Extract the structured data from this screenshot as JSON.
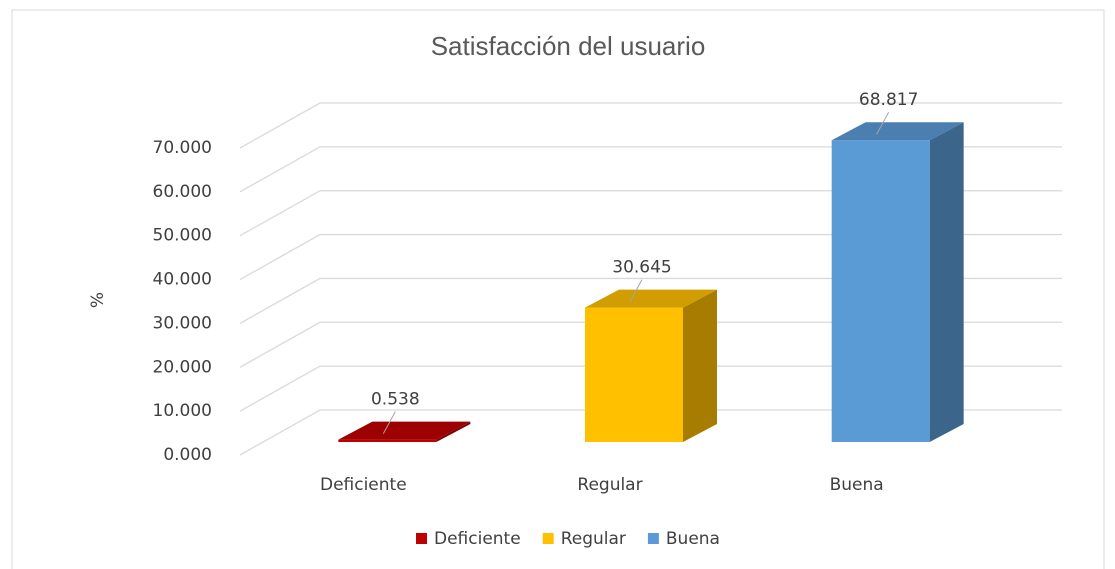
{
  "chart_data": {
    "type": "bar3d",
    "title": "Satisfacción del usuario",
    "y_label": "%",
    "categories": [
      "Deficiente",
      "Regular",
      "Buena"
    ],
    "values": [
      0.538,
      30.645,
      68.817
    ],
    "colors": [
      "#c00000",
      "#ffc000",
      "#5b9bd5"
    ],
    "ylim": [
      0,
      70
    ],
    "yticks": [
      {
        "value": 0,
        "label": "0.000"
      },
      {
        "value": 10,
        "label": "10.000"
      },
      {
        "value": 20,
        "label": "20.000"
      },
      {
        "value": 30,
        "label": "30.000"
      },
      {
        "value": 40,
        "label": "40.000"
      },
      {
        "value": 50,
        "label": "50.000"
      },
      {
        "value": 60,
        "label": "60.000"
      },
      {
        "value": 70,
        "label": "70.000"
      }
    ],
    "grid": true,
    "legend": "bottom"
  }
}
